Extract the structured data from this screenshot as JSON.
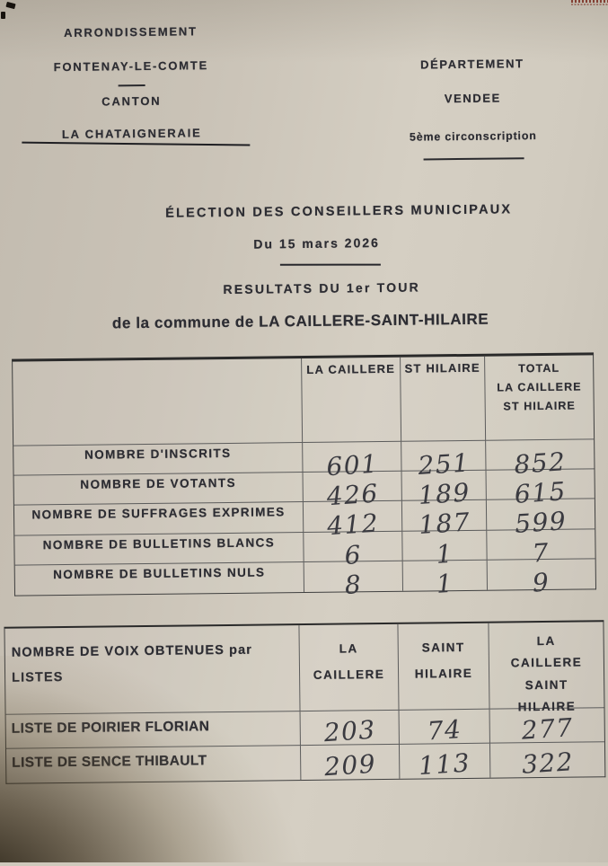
{
  "colors": {
    "paper": "#cfc9bc",
    "ink": "#2d2d33",
    "pen": "#3a3a40",
    "table_border": "#4a4a4a",
    "stamp_red": "#7a2a1e"
  },
  "header_left": {
    "arrondissement_label": "ARRONDISSEMENT",
    "arrondissement_value": "FONTENAY-LE-COMTE",
    "canton_label": "CANTON",
    "canton_value": "LA CHATAIGNERAIE"
  },
  "header_right": {
    "departement_label": "DÉPARTEMENT",
    "departement_value": "VENDEE",
    "circonscription": "5ème circonscription"
  },
  "title": {
    "election": "ÉLECTION DES CONSEILLERS MUNICIPAUX",
    "date": "Du 15 mars 2026",
    "round": "RESULTATS DU 1er TOUR",
    "commune": "de la commune de LA CAILLERE-SAINT-HILAIRE"
  },
  "results_table": {
    "col_la_caillere": "LA CAILLERE",
    "col_st_hilaire": "ST HILAIRE",
    "col_total_lines": [
      "TOTAL",
      "LA CAILLERE",
      "ST HILAIRE"
    ],
    "rows": [
      {
        "label": "NOMBRE D'INSCRITS",
        "values": [
          "601",
          "251",
          "852"
        ]
      },
      {
        "label": "NOMBRE DE VOTANTS",
        "values": [
          "426",
          "189",
          "615"
        ]
      },
      {
        "label": "NOMBRE DE SUFFRAGES EXPRIMES",
        "values": [
          "412",
          "187",
          "599"
        ]
      },
      {
        "label": "NOMBRE DE BULLETINS BLANCS",
        "values": [
          "6",
          "1",
          "7"
        ]
      },
      {
        "label": "NOMBRE DE BULLETINS NULS",
        "values": [
          "8",
          "1",
          "9"
        ]
      }
    ]
  },
  "lists_table": {
    "header_line1": "NOMBRE DE VOIX OBTENUES par",
    "header_line2": "LISTES",
    "col1_lines": [
      "LA",
      "CAILLERE"
    ],
    "col2_lines": [
      "SAINT",
      "HILAIRE"
    ],
    "col3_lines": [
      "LA",
      "CAILLERE",
      "SAINT",
      "HILAIRE"
    ],
    "rows": [
      {
        "label": "LISTE DE POIRIER FLORIAN",
        "values": [
          "203",
          "74",
          "277"
        ]
      },
      {
        "label": "LISTE DE SENCE THIBAULT",
        "values": [
          "209",
          "113",
          "322"
        ]
      }
    ]
  }
}
